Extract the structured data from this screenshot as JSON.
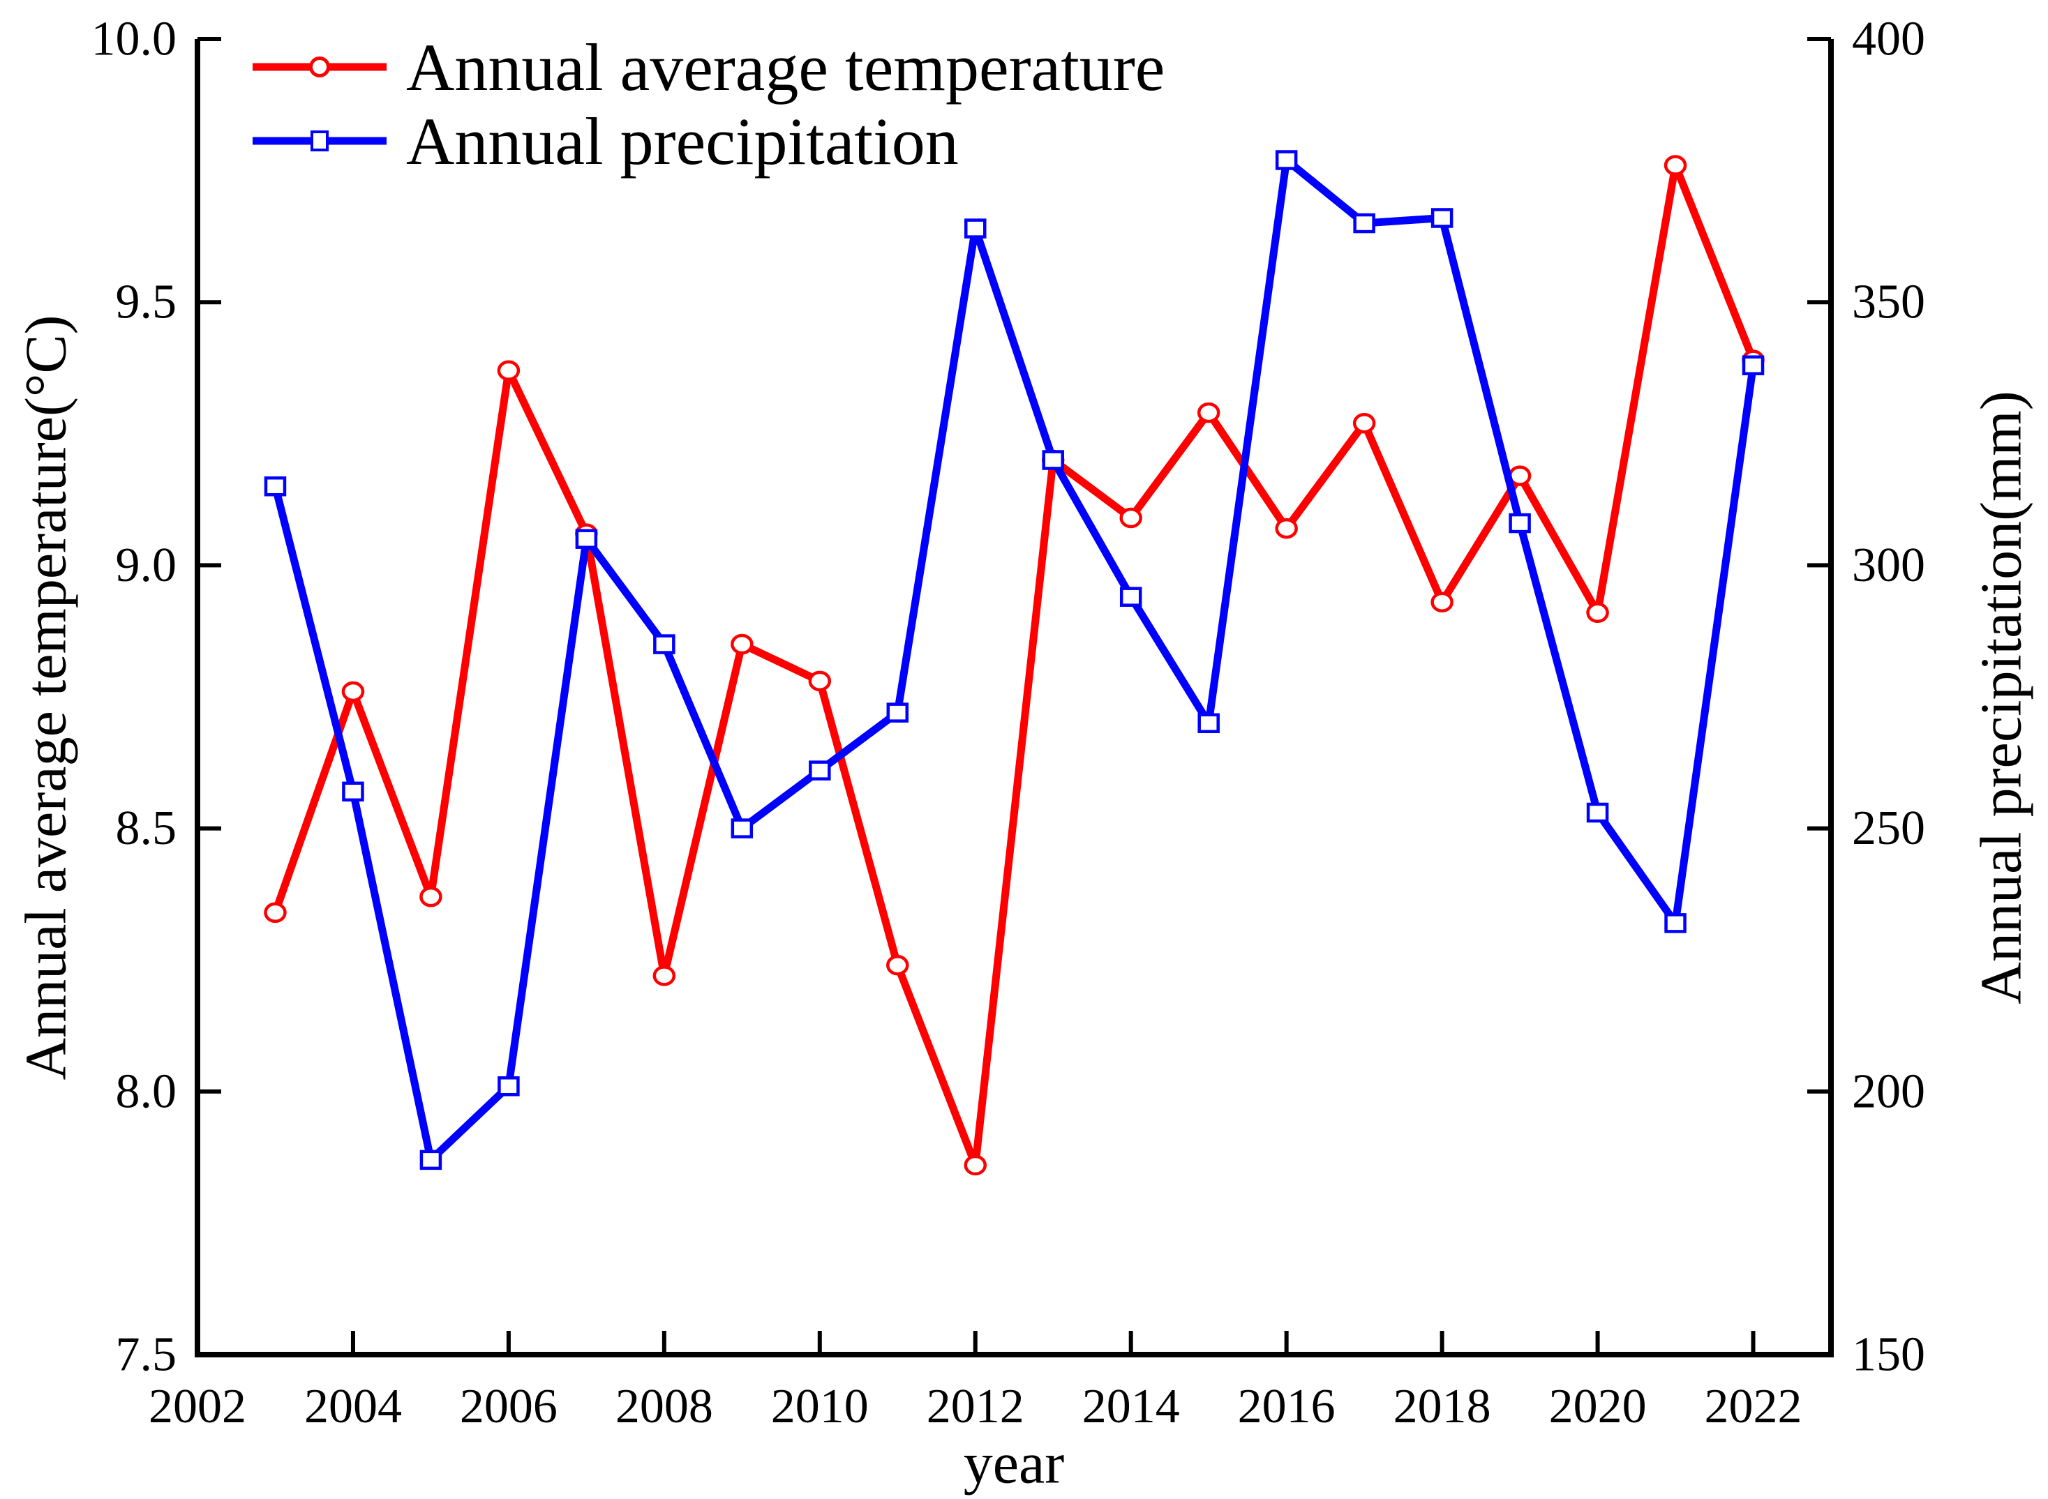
{
  "chart_data": {
    "type": "line",
    "title": "",
    "xlabel": "year",
    "ylabel_left": "Annual average temperature(°C)",
    "ylabel_right": "Annual precipitation(mm)",
    "legend_position": "top-left",
    "grid": false,
    "background": "#ffffff",
    "axis_color": "#000000",
    "x": [
      2003,
      2004,
      2005,
      2006,
      2007,
      2008,
      2009,
      2010,
      2011,
      2012,
      2013,
      2014,
      2015,
      2016,
      2017,
      2018,
      2019,
      2020,
      2021,
      2022
    ],
    "series": [
      {
        "name": "Annual average temperature",
        "axis": "left",
        "color": "#ff0000",
        "marker": "circle",
        "values": [
          8.34,
          8.76,
          8.37,
          9.37,
          9.06,
          8.22,
          8.85,
          8.78,
          8.24,
          7.86,
          9.2,
          9.09,
          9.29,
          9.07,
          9.27,
          8.93,
          9.17,
          8.91,
          9.76,
          9.39
        ]
      },
      {
        "name": "Annual precipitation",
        "axis": "right",
        "color": "#0000ff",
        "marker": "square",
        "values": [
          315,
          257,
          187,
          201,
          305,
          285,
          250,
          261,
          272,
          364,
          320,
          294,
          270,
          377,
          365,
          366,
          308,
          253,
          232,
          338
        ]
      }
    ],
    "x_axis": {
      "min": 2002,
      "max": 2023,
      "tick_labels": [
        "2002",
        "2004",
        "2006",
        "2008",
        "2010",
        "2012",
        "2014",
        "2016",
        "2018",
        "2020",
        "2022"
      ],
      "tick_values": [
        2002,
        2004,
        2006,
        2008,
        2010,
        2012,
        2014,
        2016,
        2018,
        2020,
        2022
      ]
    },
    "y_axis_left": {
      "min": 7.5,
      "max": 10.0,
      "tick_labels": [
        "7.5",
        "8.0",
        "8.5",
        "9.0",
        "9.5",
        "10.0"
      ],
      "tick_values": [
        7.5,
        8.0,
        8.5,
        9.0,
        9.5,
        10.0
      ]
    },
    "y_axis_right": {
      "min": 150,
      "max": 400,
      "tick_labels": [
        "150",
        "200",
        "250",
        "300",
        "350",
        "400"
      ],
      "tick_values": [
        150,
        200,
        250,
        300,
        350,
        400
      ]
    }
  }
}
